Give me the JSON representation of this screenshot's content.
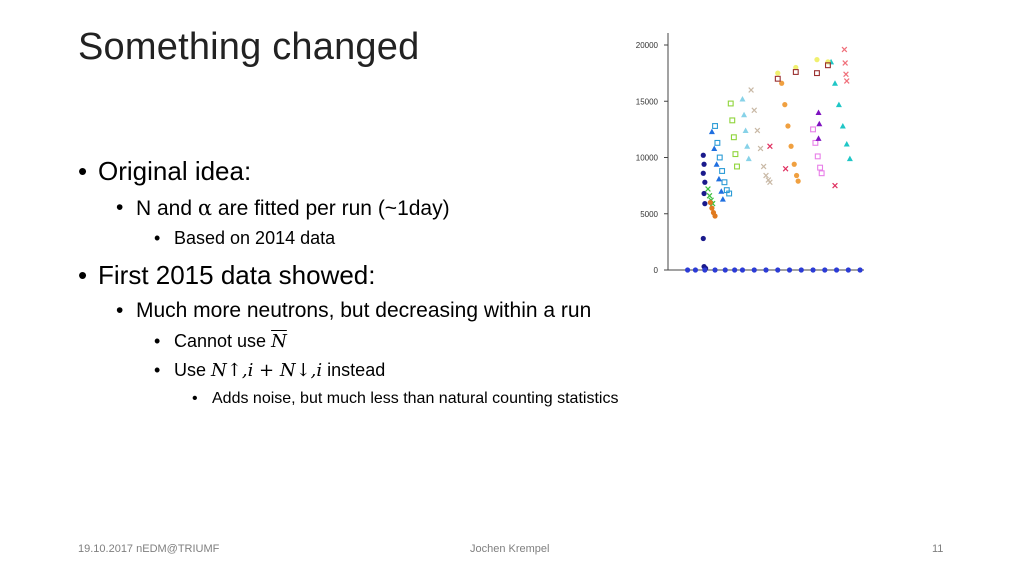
{
  "title": "Something changed",
  "bullets": {
    "b1": "Original idea:",
    "b1_1_pre": "N and ",
    "b1_1_alpha": "α",
    "b1_1_post": " are fitted per run (~1day)",
    "b1_1_1": "Based on 2014 data",
    "b2": "First 2015 data showed:",
    "b2_1": "Much more neutrons, but decreasing within a run",
    "b2_1_1_pre": "Cannot use ",
    "b2_1_1_sym": "N",
    "b2_1_2_pre": "Use ",
    "b2_1_2_math": "N↑,i + N↓,i",
    "b2_1_2_post": " instead",
    "b2_1_2_1": "Adds noise, but much less than natural counting statistics"
  },
  "footer": {
    "left": "19.10.2017 nEDM@TRIUMF",
    "center": "Jochen Krempel",
    "right": "11"
  },
  "chart_data": {
    "type": "scatter",
    "title": "",
    "xlabel": "",
    "ylabel": "",
    "ylim": [
      0,
      20000
    ],
    "yticks": [
      0,
      5000,
      10000,
      15000,
      20000
    ],
    "x_tick_labels": [],
    "note": "Many runs; each shown as a colored sequence of points decreasing with time, then reset near 0",
    "series": [
      {
        "color": "#1a1a8c",
        "points": [
          [
            4.5,
            10200
          ],
          [
            4.6,
            9400
          ],
          [
            4.5,
            8600
          ],
          [
            4.7,
            7800
          ],
          [
            4.6,
            6800
          ],
          [
            4.7,
            5900
          ],
          [
            4.5,
            2800
          ],
          [
            4.6,
            300
          ],
          [
            4.8,
            150
          ]
        ]
      },
      {
        "color": "#2b9bd6",
        "points": [
          [
            6.0,
            12800
          ],
          [
            6.3,
            11300
          ],
          [
            6.6,
            10000
          ],
          [
            6.9,
            8800
          ],
          [
            7.2,
            7800
          ],
          [
            7.5,
            7100
          ],
          [
            7.8,
            6800
          ]
        ]
      },
      {
        "color": "#1f6fe0",
        "points": [
          [
            5.6,
            12300
          ],
          [
            5.9,
            10800
          ],
          [
            6.2,
            9400
          ],
          [
            6.5,
            8100
          ],
          [
            6.8,
            7000
          ],
          [
            7.0,
            6300
          ]
        ]
      },
      {
        "color": "#3bbf3b",
        "points": [
          [
            5.1,
            7200
          ],
          [
            5.3,
            6600
          ],
          [
            5.5,
            6200
          ],
          [
            5.7,
            5900
          ]
        ]
      },
      {
        "color": "#e07a1f",
        "points": [
          [
            5.4,
            6000
          ],
          [
            5.6,
            5500
          ],
          [
            5.8,
            5100
          ],
          [
            6.0,
            4800
          ]
        ]
      },
      {
        "color": "#8fd43a",
        "points": [
          [
            8.0,
            14800
          ],
          [
            8.2,
            13300
          ],
          [
            8.4,
            11800
          ],
          [
            8.6,
            10300
          ],
          [
            8.8,
            9200
          ]
        ]
      },
      {
        "color": "#87d2e8",
        "points": [
          [
            9.5,
            15200
          ],
          [
            9.7,
            13800
          ],
          [
            9.9,
            12400
          ],
          [
            10.1,
            11000
          ],
          [
            10.3,
            9900
          ]
        ]
      },
      {
        "color": "#c9b9a6",
        "points": [
          [
            10.6,
            16000
          ],
          [
            11.0,
            14200
          ],
          [
            11.4,
            12400
          ],
          [
            11.8,
            10800
          ],
          [
            12.2,
            9200
          ],
          [
            12.5,
            8400
          ],
          [
            12.8,
            8000
          ],
          [
            13.0,
            7800
          ]
        ]
      },
      {
        "color": "#f0a040",
        "points": [
          [
            14.5,
            16600
          ],
          [
            14.9,
            14700
          ],
          [
            15.3,
            12800
          ],
          [
            15.7,
            11000
          ],
          [
            16.1,
            9400
          ],
          [
            16.4,
            8400
          ],
          [
            16.6,
            7900
          ]
        ]
      },
      {
        "color": "#e87fe8",
        "points": [
          [
            18.5,
            12500
          ],
          [
            18.8,
            11300
          ],
          [
            19.1,
            10100
          ],
          [
            19.4,
            9100
          ],
          [
            19.6,
            8600
          ]
        ]
      },
      {
        "color": "#1fc6c6",
        "points": [
          [
            20.8,
            18500
          ],
          [
            21.3,
            16600
          ],
          [
            21.8,
            14700
          ],
          [
            22.3,
            12800
          ],
          [
            22.8,
            11200
          ],
          [
            23.2,
            9900
          ]
        ]
      },
      {
        "color": "#f06f7a",
        "points": [
          [
            22.5,
            19600
          ],
          [
            22.6,
            18400
          ],
          [
            22.7,
            17400
          ],
          [
            22.8,
            16800
          ]
        ]
      },
      {
        "color": "#f0f06f",
        "points": [
          [
            14.0,
            17500
          ],
          [
            16.3,
            18000
          ],
          [
            19.0,
            18700
          ],
          [
            20.4,
            18500
          ]
        ]
      },
      {
        "color": "#9a3030",
        "points": [
          [
            14.0,
            17000
          ],
          [
            16.3,
            17600
          ],
          [
            19.0,
            17500
          ],
          [
            20.4,
            18200
          ]
        ]
      },
      {
        "color": "#7f12c0",
        "points": [
          [
            19.2,
            14000
          ],
          [
            19.3,
            13000
          ],
          [
            19.2,
            11700
          ]
        ]
      },
      {
        "color": "#e03060",
        "points": [
          [
            21.3,
            7500
          ],
          [
            15.0,
            9000
          ],
          [
            13.0,
            11000
          ]
        ]
      },
      {
        "color": "#2b3bd6",
        "points": [
          [
            2.5,
            0
          ],
          [
            3.5,
            0
          ],
          [
            4.7,
            0
          ],
          [
            6.0,
            0
          ],
          [
            7.3,
            0
          ],
          [
            8.5,
            0
          ],
          [
            9.5,
            0
          ],
          [
            11.0,
            0
          ],
          [
            12.5,
            0
          ],
          [
            14.0,
            0
          ],
          [
            15.5,
            0
          ],
          [
            17.0,
            0
          ],
          [
            18.5,
            0
          ],
          [
            20.0,
            0
          ],
          [
            21.5,
            0
          ],
          [
            23.0,
            0
          ],
          [
            24.5,
            0
          ]
        ]
      }
    ]
  }
}
